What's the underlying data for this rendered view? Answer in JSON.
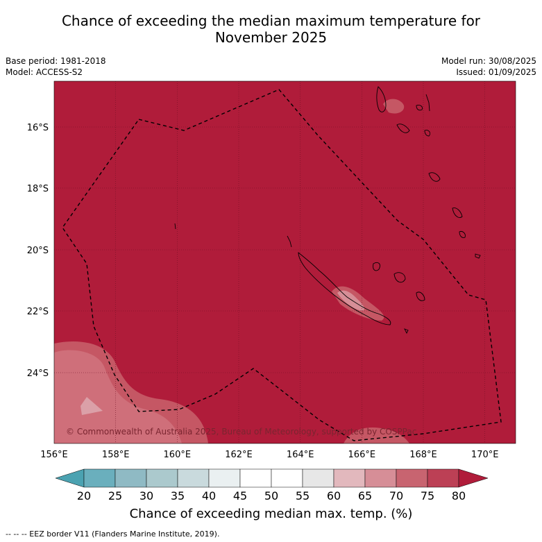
{
  "title_line1": "Chance of exceeding the median maximum temperature for",
  "title_line2": "November 2025",
  "meta_left": [
    "Base period: 1981-2018",
    "Model: ACCESS-S2"
  ],
  "meta_right": [
    "Model run: 30/08/2025",
    "Issued: 01/09/2025"
  ],
  "map": {
    "lon_range": [
      156,
      171
    ],
    "lat_range": [
      -26.0,
      -14.6
    ],
    "lon_ticks": [
      "156°E",
      "158°E",
      "160°E",
      "162°E",
      "164°E",
      "166°E",
      "168°E",
      "170°E"
    ],
    "lat_ticks": [
      "16°S",
      "18°S",
      "20°S",
      "22°S",
      "24°S"
    ],
    "background_color": "#b01c3a",
    "copyright": "© Commonwealth of Australia 2025, Bureau of Meteorology, supported by COSPPac"
  },
  "colorbar": {
    "labels": [
      "20",
      "25",
      "30",
      "35",
      "40",
      "45",
      "50",
      "55",
      "60",
      "65",
      "70",
      "75",
      "80"
    ],
    "colors": [
      "#6aafbd",
      "#8fbac4",
      "#abc9cd",
      "#c9dadd",
      "#eaf0f1",
      "#ffffff",
      "#ffffff",
      "#e7e7e7",
      "#e2b8bd",
      "#d68e97",
      "#c86470",
      "#bc4055"
    ],
    "under_color": "#4ba2b1",
    "over_color": "#b01c3a",
    "title": "Chance of exceeding median max. temp. (%)"
  },
  "footnote": "--  --  -- EEZ border V11 (Flanders Marine Institute, 2019)."
}
